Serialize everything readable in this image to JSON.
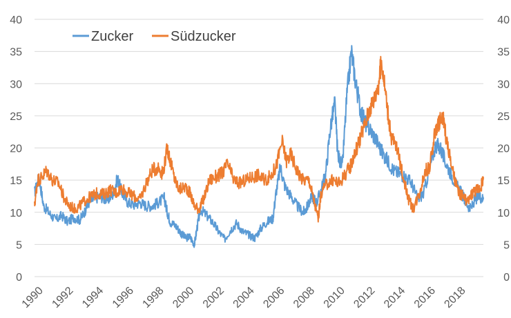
{
  "chart_data": {
    "type": "line",
    "title": "",
    "xlabel": "",
    "ylabel": "",
    "xlim": [
      1990,
      2019.75
    ],
    "ylim": [
      0,
      40
    ],
    "y_ticks": [
      0,
      5,
      10,
      15,
      20,
      25,
      30,
      35,
      40
    ],
    "y_tick_labels": [
      "0",
      "5",
      "10",
      "15",
      "20",
      "25",
      "30",
      "35",
      "40"
    ],
    "x_ticks": [
      1990,
      1992,
      1994,
      1996,
      1998,
      2000,
      2002,
      2004,
      2006,
      2008,
      2010,
      2012,
      2014,
      2016,
      2018
    ],
    "x_tick_labels": [
      "1990",
      "1992",
      "1994",
      "1996",
      "1998",
      "2000",
      "2002",
      "2004",
      "2006",
      "2008",
      "2010",
      "2012",
      "2014",
      "2016",
      "2018"
    ],
    "grid": "horizontal",
    "secondary_y_axis": true,
    "legend_position": "top-left",
    "series": [
      {
        "name": "Zucker",
        "color": "#5b9bd5",
        "points": [
          [
            1990.0,
            13
          ],
          [
            1990.3,
            15.5
          ],
          [
            1990.6,
            11
          ],
          [
            1991.0,
            9.8
          ],
          [
            1991.4,
            8.8
          ],
          [
            1991.8,
            9.5
          ],
          [
            1992.2,
            8.5
          ],
          [
            1992.6,
            9.2
          ],
          [
            1993.0,
            8.8
          ],
          [
            1993.3,
            10
          ],
          [
            1993.6,
            11.5
          ],
          [
            1994.0,
            12.2
          ],
          [
            1994.4,
            12.5
          ],
          [
            1994.8,
            11.8
          ],
          [
            1995.2,
            12.8
          ],
          [
            1995.5,
            15.3
          ],
          [
            1995.8,
            13
          ],
          [
            1996.2,
            11.5
          ],
          [
            1996.6,
            11.2
          ],
          [
            1997.0,
            11.5
          ],
          [
            1997.4,
            11
          ],
          [
            1997.8,
            11
          ],
          [
            1998.2,
            11.5
          ],
          [
            1998.6,
            12.2
          ],
          [
            1998.8,
            10
          ],
          [
            1999.0,
            8.5
          ],
          [
            1999.4,
            7.8
          ],
          [
            1999.7,
            6.8
          ],
          [
            2000.0,
            6
          ],
          [
            2000.3,
            6.2
          ],
          [
            2000.6,
            5
          ],
          [
            2000.8,
            8
          ],
          [
            2001.0,
            10.5
          ],
          [
            2001.4,
            9.5
          ],
          [
            2001.8,
            8.5
          ],
          [
            2002.2,
            7
          ],
          [
            2002.6,
            5.8
          ],
          [
            2003.0,
            7.3
          ],
          [
            2003.4,
            8.3
          ],
          [
            2003.8,
            7
          ],
          [
            2004.2,
            6.5
          ],
          [
            2004.6,
            6
          ],
          [
            2005.0,
            7.5
          ],
          [
            2005.4,
            8.5
          ],
          [
            2005.8,
            9
          ],
          [
            2006.0,
            13
          ],
          [
            2006.3,
            17
          ],
          [
            2006.6,
            14
          ],
          [
            2007.0,
            12.5
          ],
          [
            2007.4,
            11
          ],
          [
            2007.8,
            10
          ],
          [
            2008.0,
            10.5
          ],
          [
            2008.4,
            12.5
          ],
          [
            2008.7,
            11.5
          ],
          [
            2009.0,
            13.5
          ],
          [
            2009.3,
            16
          ],
          [
            2009.6,
            23
          ],
          [
            2009.9,
            27
          ],
          [
            2010.1,
            19
          ],
          [
            2010.4,
            17
          ],
          [
            2010.7,
            28
          ],
          [
            2011.0,
            35
          ],
          [
            2011.3,
            30
          ],
          [
            2011.6,
            26
          ],
          [
            2011.9,
            24
          ],
          [
            2012.2,
            23
          ],
          [
            2012.6,
            21.5
          ],
          [
            2013.0,
            19.5
          ],
          [
            2013.4,
            18
          ],
          [
            2013.8,
            16.5
          ],
          [
            2014.2,
            16
          ],
          [
            2014.6,
            15.5
          ],
          [
            2015.0,
            14.5
          ],
          [
            2015.4,
            12
          ],
          [
            2015.8,
            13
          ],
          [
            2016.2,
            17
          ],
          [
            2016.6,
            20.5
          ],
          [
            2016.9,
            20
          ],
          [
            2017.2,
            18
          ],
          [
            2017.6,
            16
          ],
          [
            2018.0,
            14
          ],
          [
            2018.3,
            13
          ],
          [
            2018.6,
            11.5
          ],
          [
            2018.9,
            10.5
          ],
          [
            2019.2,
            12
          ],
          [
            2019.5,
            12.5
          ],
          [
            2019.75,
            12
          ]
        ]
      },
      {
        "name": "Südzucker",
        "color": "#ed7d31",
        "points": [
          [
            1990.0,
            11
          ],
          [
            1990.2,
            15
          ],
          [
            1990.5,
            15.5
          ],
          [
            1990.8,
            16.5
          ],
          [
            1991.2,
            15
          ],
          [
            1991.6,
            14.5
          ],
          [
            1992.0,
            12
          ],
          [
            1992.3,
            11
          ],
          [
            1992.7,
            10.5
          ],
          [
            1993.0,
            11
          ],
          [
            1993.4,
            12
          ],
          [
            1993.8,
            12.5
          ],
          [
            1994.2,
            13
          ],
          [
            1994.6,
            12.8
          ],
          [
            1995.0,
            13.5
          ],
          [
            1995.4,
            13
          ],
          [
            1995.8,
            13.8
          ],
          [
            1996.2,
            13
          ],
          [
            1996.6,
            12.5
          ],
          [
            1997.0,
            12
          ],
          [
            1997.4,
            14.5
          ],
          [
            1997.8,
            16.5
          ],
          [
            1998.2,
            17
          ],
          [
            1998.5,
            16
          ],
          [
            1998.8,
            20
          ],
          [
            1999.0,
            18
          ],
          [
            1999.3,
            15
          ],
          [
            1999.6,
            13.5
          ],
          [
            2000.0,
            14
          ],
          [
            2000.3,
            13
          ],
          [
            2000.6,
            11
          ],
          [
            2000.9,
            10.5
          ],
          [
            2001.2,
            12
          ],
          [
            2001.6,
            15
          ],
          [
            2002.0,
            15.5
          ],
          [
            2002.4,
            16
          ],
          [
            2002.8,
            17.5
          ],
          [
            2003.2,
            15
          ],
          [
            2003.6,
            14.5
          ],
          [
            2004.0,
            15
          ],
          [
            2004.4,
            15.5
          ],
          [
            2004.8,
            15.8
          ],
          [
            2005.2,
            15
          ],
          [
            2005.6,
            15.5
          ],
          [
            2006.0,
            17
          ],
          [
            2006.4,
            21
          ],
          [
            2006.7,
            18
          ],
          [
            2007.0,
            19
          ],
          [
            2007.4,
            16.5
          ],
          [
            2007.8,
            15
          ],
          [
            2008.2,
            15
          ],
          [
            2008.5,
            12
          ],
          [
            2008.8,
            9
          ],
          [
            2009.0,
            13
          ],
          [
            2009.4,
            14.5
          ],
          [
            2009.8,
            15
          ],
          [
            2010.2,
            14.5
          ],
          [
            2010.6,
            16
          ],
          [
            2010.9,
            17
          ],
          [
            2011.2,
            19
          ],
          [
            2011.5,
            21
          ],
          [
            2011.8,
            23
          ],
          [
            2012.2,
            26
          ],
          [
            2012.5,
            27.5
          ],
          [
            2012.8,
            30
          ],
          [
            2013.0,
            33.5
          ],
          [
            2013.3,
            28
          ],
          [
            2013.6,
            22
          ],
          [
            2014.0,
            20
          ],
          [
            2014.4,
            16
          ],
          [
            2014.8,
            12
          ],
          [
            2015.1,
            10.5
          ],
          [
            2015.5,
            13
          ],
          [
            2015.9,
            16.5
          ],
          [
            2016.2,
            17
          ],
          [
            2016.5,
            22
          ],
          [
            2016.8,
            24
          ],
          [
            2017.1,
            24.5
          ],
          [
            2017.4,
            20
          ],
          [
            2017.8,
            15.5
          ],
          [
            2018.1,
            13
          ],
          [
            2018.4,
            12.5
          ],
          [
            2018.7,
            11.5
          ],
          [
            2019.0,
            13
          ],
          [
            2019.3,
            13.5
          ],
          [
            2019.6,
            14
          ],
          [
            2019.75,
            15.5
          ]
        ]
      }
    ]
  }
}
